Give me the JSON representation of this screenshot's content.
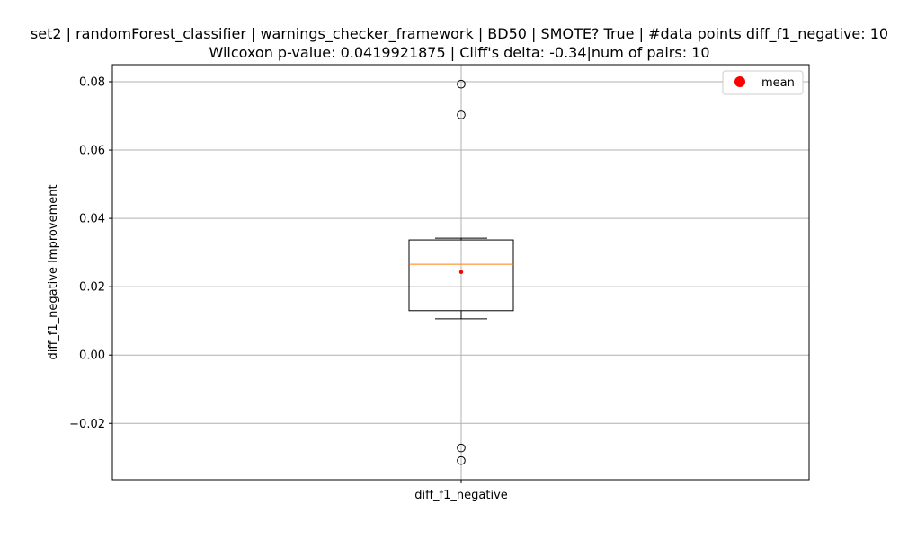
{
  "chart_data": {
    "type": "box",
    "title_line1": "set2 | randomForest_classifier | warnings_checker_framework | BD50 | SMOTE? True | #data points diff_f1_negative: 10",
    "title_line2": "Wilcoxon p-value: 0.0419921875 | Cliff's delta: -0.34|num of pairs: 10",
    "xlabel": "",
    "ylabel": "diff_f1_negative Improvement",
    "categories": [
      "diff_f1_negative"
    ],
    "ylim": [
      -0.0365,
      0.085
    ],
    "yticks": [
      -0.02,
      0.0,
      0.02,
      0.04,
      0.06,
      0.08
    ],
    "ytick_labels": [
      "−0.02",
      "0.00",
      "0.02",
      "0.04",
      "0.06",
      "0.08"
    ],
    "grid": true,
    "box": {
      "whisker_low": 0.0106,
      "q1": 0.013,
      "median": 0.0266,
      "q3": 0.0337,
      "whisker_high": 0.0342,
      "mean": 0.0243,
      "outliers": [
        0.0793,
        0.0703,
        -0.0272,
        -0.0309
      ]
    },
    "legend": {
      "position": "top-right",
      "entries": [
        "mean"
      ]
    },
    "colors": {
      "median": "#ff7f0e",
      "mean": "#ff0000",
      "grid": "#b0b0b0"
    }
  }
}
